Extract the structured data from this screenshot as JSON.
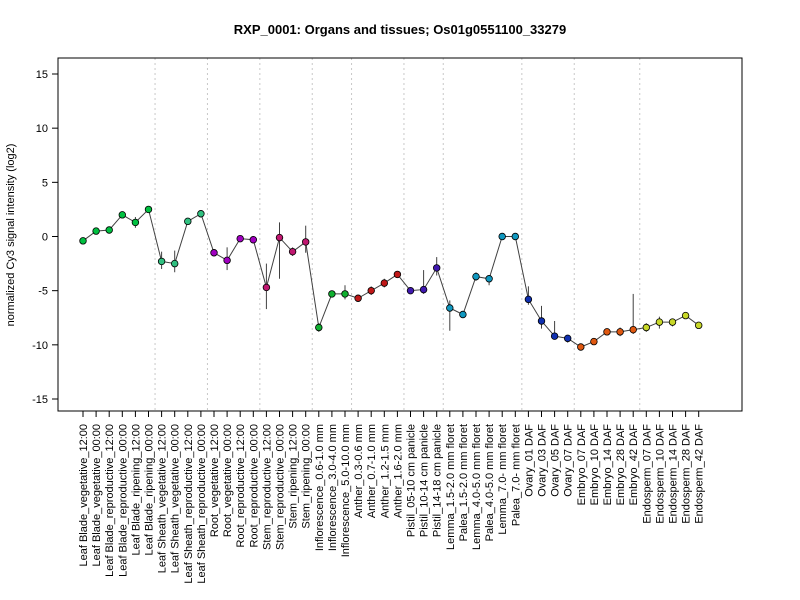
{
  "chart_data": {
    "type": "line",
    "title": "RXP_0001: Organs and tissues; Os01g0551100_33279",
    "xlabel": "",
    "ylabel": "normalized Cy3 signal intensity (log2)",
    "ylim": [
      -15,
      15
    ],
    "yticks": [
      -15,
      -10,
      -5,
      0,
      5,
      10,
      15
    ],
    "grid": "vertical dotted lines between sample groups",
    "legend": "none",
    "categories": [
      "Leaf Blade_vegetative_12:00",
      "Leaf Blade_vegetative_00:00",
      "Leaf Blade_reproductive_12:00",
      "Leaf Blade_reproductive_00:00",
      "Leaf Blade_ripening_12:00",
      "Leaf Blade_ripening_00:00",
      "Leaf Sheath_vegetative_12:00",
      "Leaf Sheath_vegetative_00:00",
      "Leaf Sheath_reproductive_12:00",
      "Leaf Sheath_reproductive_00:00",
      "Root_vegetative_12:00",
      "Root_vegetative_00:00",
      "Root_reproductive_12:00",
      "Root_reproductive_00:00",
      "Stem_reproductive_12:00",
      "Stem_reproductive_00:00",
      "Stem_ripening_12:00",
      "Stem_ripening_00:00",
      "Inflorescence_0.6-1.0 mm",
      "Inflorescence_3.0-4.0 mm",
      "Inflorescence_5.0-10.0 mm",
      "Anther_0.3-0.6 mm",
      "Anther_0.7-1.0 mm",
      "Anther_1.2-1.5 mm",
      "Anther_1.6-2.0 mm",
      "Pistil_05-10 cm panicle",
      "Pistil_10-14 cm panicle",
      "Pistil_14-18 cm panicle",
      "Lemma_1.5-2.0 mm floret",
      "Palea_1.5-2.0 mm floret",
      "Lemma_4.0-5.0 mm floret",
      "Palea_4.0-5.0 mm floret",
      "Lemma_7.0- mm floret",
      "Palea_7.0- mm floret",
      "Ovary_01 DAF",
      "Ovary_03 DAF",
      "Ovary_05 DAF",
      "Ovary_07 DAF",
      "Embryo_07 DAF",
      "Embryo_10 DAF",
      "Embryo_14 DAF",
      "Embryo_28 DAF",
      "Embryo_42 DAF",
      "Endosperm_07 DAF",
      "Endosperm_10 DAF",
      "Endosperm_14 DAF",
      "Endosperm_28 DAF",
      "Endosperm_42 DAF"
    ],
    "values": [
      -0.4,
      0.5,
      0.6,
      2.0,
      1.3,
      2.5,
      -2.3,
      -2.5,
      1.4,
      2.1,
      -1.5,
      -2.2,
      -0.2,
      -0.3,
      -4.7,
      -0.1,
      -1.4,
      -0.5,
      -8.4,
      -5.3,
      -5.3,
      -5.7,
      -5.0,
      -4.3,
      -3.5,
      -5.0,
      -4.9,
      -2.9,
      -6.6,
      -7.2,
      -3.7,
      -3.9,
      0.0,
      0.0,
      -5.8,
      -7.8,
      -9.2,
      -9.4,
      -10.2,
      -9.7,
      -8.8,
      -8.8,
      -8.6,
      -8.4,
      -7.9,
      -7.9,
      -7.3,
      -8.2
    ],
    "errors": [
      [
        -0.1,
        -0.7
      ],
      [
        0.8,
        0.2
      ],
      [
        0.8,
        0.4
      ],
      [
        2.2,
        1.8
      ],
      [
        1.8,
        0.8
      ],
      [
        2.7,
        2.3
      ],
      [
        -1.4,
        -3.0
      ],
      [
        -1.3,
        -3.3
      ],
      [
        1.6,
        1.2
      ],
      [
        2.4,
        1.8
      ],
      [
        -1.3,
        -1.7
      ],
      [
        -1.0,
        -3.1
      ],
      [
        0.0,
        -0.4
      ],
      [
        -0.1,
        -0.5
      ],
      [
        -2.5,
        -6.7
      ],
      [
        1.3,
        -3.9
      ],
      [
        -1.0,
        -1.8
      ],
      [
        1.0,
        -1.5
      ],
      [
        -8.0,
        -8.8
      ],
      [
        -5.1,
        -5.5
      ],
      [
        -4.5,
        -5.8
      ],
      [
        -5.4,
        -6.0
      ],
      [
        -4.6,
        -5.4
      ],
      [
        -3.9,
        -4.7
      ],
      [
        -3.3,
        -3.7
      ],
      [
        -4.7,
        -5.3
      ],
      [
        -3.1,
        -5.3
      ],
      [
        -1.9,
        -3.6
      ],
      [
        -5.9,
        -8.7
      ],
      [
        -6.9,
        -7.5
      ],
      [
        -3.3,
        -4.1
      ],
      [
        -3.6,
        -4.5
      ],
      [
        0.2,
        -0.2
      ],
      [
        0.2,
        -0.2
      ],
      [
        -4.6,
        -6.3
      ],
      [
        -6.4,
        -8.5
      ],
      [
        -7.8,
        -9.5
      ],
      [
        -9.1,
        -9.8
      ],
      [
        -10.0,
        -10.4
      ],
      [
        -9.5,
        -9.9
      ],
      [
        -8.6,
        -9.0
      ],
      [
        -8.4,
        -9.2
      ],
      [
        -5.3,
        -9.0
      ],
      [
        -8.0,
        -8.8
      ],
      [
        -7.4,
        -8.5
      ],
      [
        -7.6,
        -8.3
      ],
      [
        -7.1,
        -7.5
      ],
      [
        -8.0,
        -8.4
      ]
    ],
    "colors": [
      "#00c040",
      "#00c040",
      "#00c040",
      "#00c040",
      "#00c040",
      "#00c040",
      "#30c080",
      "#30c080",
      "#30c080",
      "#30c080",
      "#a000c0",
      "#a000c0",
      "#a000c0",
      "#a000c0",
      "#c01870",
      "#c01870",
      "#c01870",
      "#c01870",
      "#10b030",
      "#10b030",
      "#10b030",
      "#c01818",
      "#c01818",
      "#c01818",
      "#c01818",
      "#4018b0",
      "#4018b0",
      "#4018b0",
      "#1098c0",
      "#1098c0",
      "#1098c0",
      "#1098c0",
      "#1098c0",
      "#1098c0",
      "#1030b0",
      "#1030b0",
      "#1030b0",
      "#1030b0",
      "#e05810",
      "#e05810",
      "#e05810",
      "#e05810",
      "#e05810",
      "#c8d828",
      "#c8d828",
      "#c8d828",
      "#c8d828",
      "#c8d828"
    ],
    "group_boundaries_after_index": [
      5,
      9,
      13,
      17,
      20,
      24,
      27,
      33,
      37,
      42
    ]
  }
}
